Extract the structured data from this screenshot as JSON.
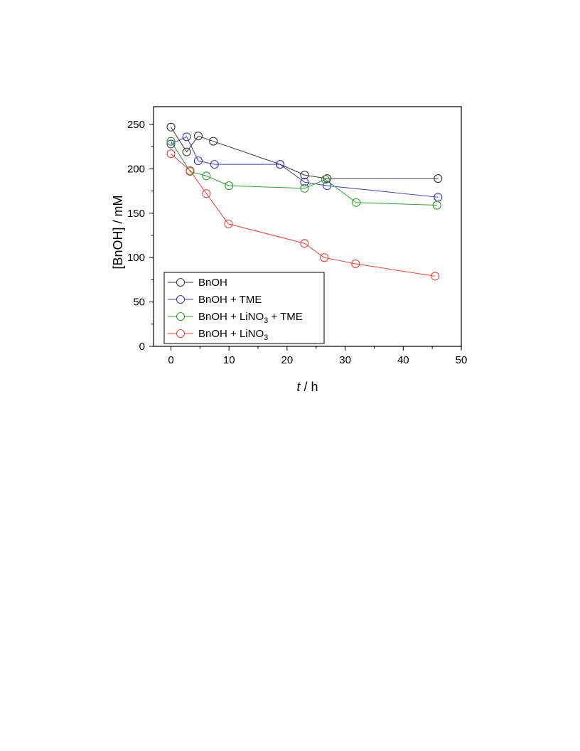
{
  "chart_data": {
    "type": "line",
    "xlabel_var": "t",
    "xlabel_unit": " / h",
    "ylabel": "[BnOH] / mM",
    "xlim": [
      -3,
      50
    ],
    "ylim": [
      0,
      270
    ],
    "x_ticks": [
      0,
      10,
      20,
      30,
      40,
      50
    ],
    "y_ticks": [
      0,
      50,
      100,
      150,
      200,
      250
    ],
    "grid": false,
    "legend_position": "bottom-left",
    "markers": "open-circle",
    "series": [
      {
        "name": "BnOH",
        "legend_parts": [
          "BnOH"
        ],
        "color": "#3a3a3a",
        "x": [
          0,
          2.7,
          4.7,
          7.3,
          18.8,
          23,
          26.9,
          46
        ],
        "y": [
          247,
          219,
          237,
          231,
          205,
          193,
          189,
          189
        ]
      },
      {
        "name": "BnOH + TME",
        "legend_parts": [
          "BnOH + TME"
        ],
        "color": "#3b3bb0",
        "x": [
          0,
          2.7,
          4.7,
          7.5,
          18.8,
          23,
          26.9,
          46
        ],
        "y": [
          228,
          236,
          209,
          205,
          205,
          185,
          181,
          168
        ]
      },
      {
        "name": "BnOH + LiNO3 + TME",
        "legend_parts": [
          "BnOH + LiNO",
          "3",
          " + TME"
        ],
        "color": "#2fa02f",
        "x": [
          0,
          3.3,
          6.1,
          10,
          23,
          26.6,
          31.9,
          45.8
        ],
        "y": [
          231,
          197,
          192,
          181,
          178,
          188,
          162,
          159
        ]
      },
      {
        "name": "BnOH + LiNO3",
        "legend_parts": [
          "BnOH + LiNO",
          "3"
        ],
        "color": "#f0403a",
        "x": [
          0,
          3.3,
          6.1,
          9.9,
          23,
          26.4,
          31.8,
          45.5
        ],
        "y": [
          217,
          198,
          172,
          138,
          116,
          100,
          93,
          79
        ]
      }
    ]
  }
}
